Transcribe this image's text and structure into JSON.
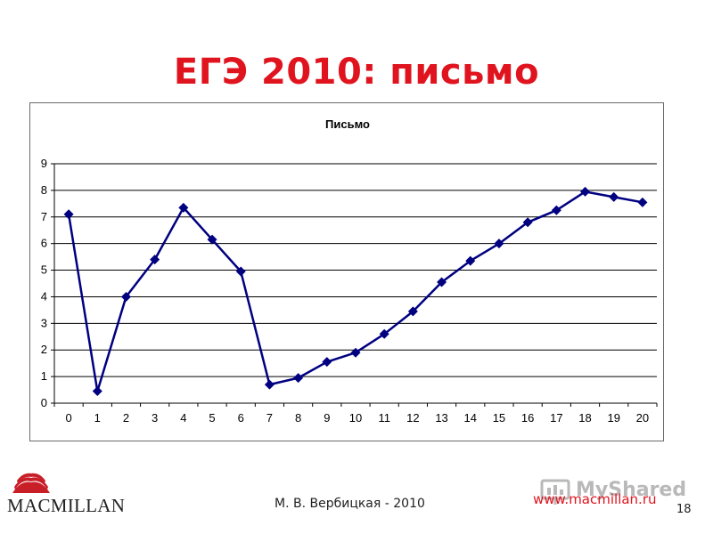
{
  "slide": {
    "title": "ЕГЭ 2010: письмо",
    "author": "М. В. Вербицкая - 2010",
    "page_number": "18",
    "site_url": "www.macmillan.ru",
    "logo_text": "MACMILLAN",
    "watermark_text": "MyShared"
  },
  "colors": {
    "title": "#e0141e",
    "series_line": "#000080",
    "grid": "#000000",
    "url": "#e0141e"
  },
  "chart_data": {
    "type": "line",
    "title": "Письмо",
    "xlabel": "",
    "ylabel": "",
    "x": [
      "0",
      "1",
      "2",
      "3",
      "4",
      "5",
      "6",
      "7",
      "8",
      "9",
      "10",
      "11",
      "12",
      "13",
      "14",
      "15",
      "16",
      "17",
      "18",
      "19",
      "20"
    ],
    "series": [
      {
        "values": [
          7.1,
          0.45,
          4.0,
          5.4,
          7.35,
          6.15,
          4.95,
          0.7,
          0.95,
          1.55,
          1.9,
          2.6,
          3.45,
          4.55,
          5.35,
          6.0,
          6.8,
          7.25,
          7.95,
          7.75,
          7.55
        ]
      }
    ],
    "ylim": [
      0,
      9
    ],
    "yticks": [
      "0",
      "1",
      "2",
      "3",
      "4",
      "5",
      "6",
      "7",
      "8",
      "9"
    ],
    "grid": "horizontal",
    "marker": "diamond",
    "legend": "none"
  }
}
